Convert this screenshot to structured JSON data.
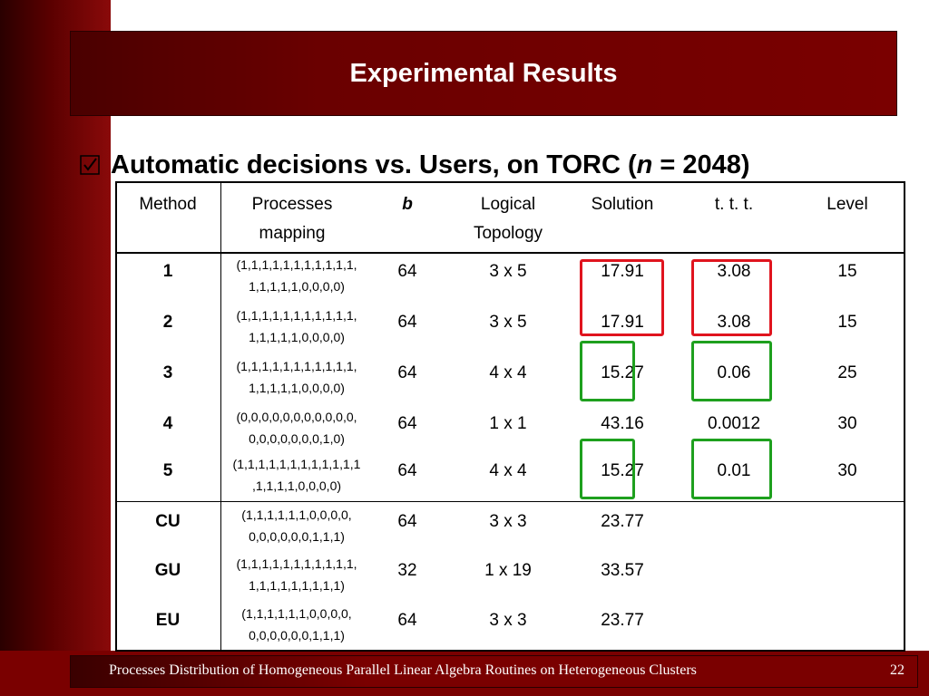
{
  "slide": {
    "title": "Experimental Results",
    "bullet": {
      "prefix": "Automatic decisions vs. Users, on TORC (",
      "variable": "n",
      "suffix": " = 2048)"
    },
    "footer": "Processes Distribution of Homogeneous Parallel Linear Algebra Routines on Heterogeneous Clusters",
    "page_number": "22"
  },
  "table": {
    "headers": {
      "method": "Method",
      "processes_line1": "Processes",
      "processes_line2": "mapping",
      "b": "b",
      "logical_line1": "Logical",
      "logical_line2": "Topology",
      "solution": "Solution",
      "ttt": "t. t. t.",
      "level": "Level"
    },
    "rows": [
      {
        "method": "1",
        "map1": "(1,1,1,1,1,1,1,1,1,1,1,",
        "map2": "1,1,1,1,1,0,0,0,0)",
        "b": "64",
        "topology": "3 x 5",
        "solution": "17.91",
        "ttt": "3.08",
        "level": "15"
      },
      {
        "method": "2",
        "map1": "(1,1,1,1,1,1,1,1,1,1,1,",
        "map2": "1,1,1,1,1,0,0,0,0)",
        "b": "64",
        "topology": "3 x 5",
        "solution": "17.91",
        "ttt": "3.08",
        "level": "15"
      },
      {
        "method": "3",
        "map1": "(1,1,1,1,1,1,1,1,1,1,1,",
        "map2": "1,1,1,1,1,0,0,0,0)",
        "b": "64",
        "topology": "4 x 4",
        "solution": "15.27",
        "ttt": "0.06",
        "level": "25"
      },
      {
        "method": "4",
        "map1": "(0,0,0,0,0,0,0,0,0,0,0,",
        "map2": "0,0,0,0,0,0,0,1,0)",
        "b": "64",
        "topology": "1 x 1",
        "solution": "43.16",
        "ttt": "0.0012",
        "level": "30"
      },
      {
        "method": "5",
        "map1": "(1,1,1,1,1,1,1,1,1,1,1,1",
        "map2": ",1,1,1,1,0,0,0,0)",
        "b": "64",
        "topology": "4 x 4",
        "solution": "15.27",
        "ttt": "0.01",
        "level": "30"
      },
      {
        "method": "CU",
        "map1": "(1,1,1,1,1,1,0,0,0,0,",
        "map2": "0,0,0,0,0,0,1,1,1)",
        "b": "64",
        "topology": "3 x 3",
        "solution": "23.77",
        "ttt": "",
        "level": ""
      },
      {
        "method": "GU",
        "map1": "(1,1,1,1,1,1,1,1,1,1,1,",
        "map2": "1,1,1,1,1,1,1,1,1)",
        "b": "32",
        "topology": "1 x 19",
        "solution": "33.57",
        "ttt": "",
        "level": ""
      },
      {
        "method": "EU",
        "map1": "(1,1,1,1,1,1,0,0,0,0,",
        "map2": "0,0,0,0,0,0,1,1,1)",
        "b": "64",
        "topology": "3 x 3",
        "solution": "23.77",
        "ttt": "",
        "level": ""
      }
    ],
    "highlights": {
      "red_color": "#e0141e",
      "green_color": "#1ea01e",
      "red_rows": [
        "1",
        "2"
      ],
      "green_rows": [
        "3",
        "5"
      ]
    }
  }
}
